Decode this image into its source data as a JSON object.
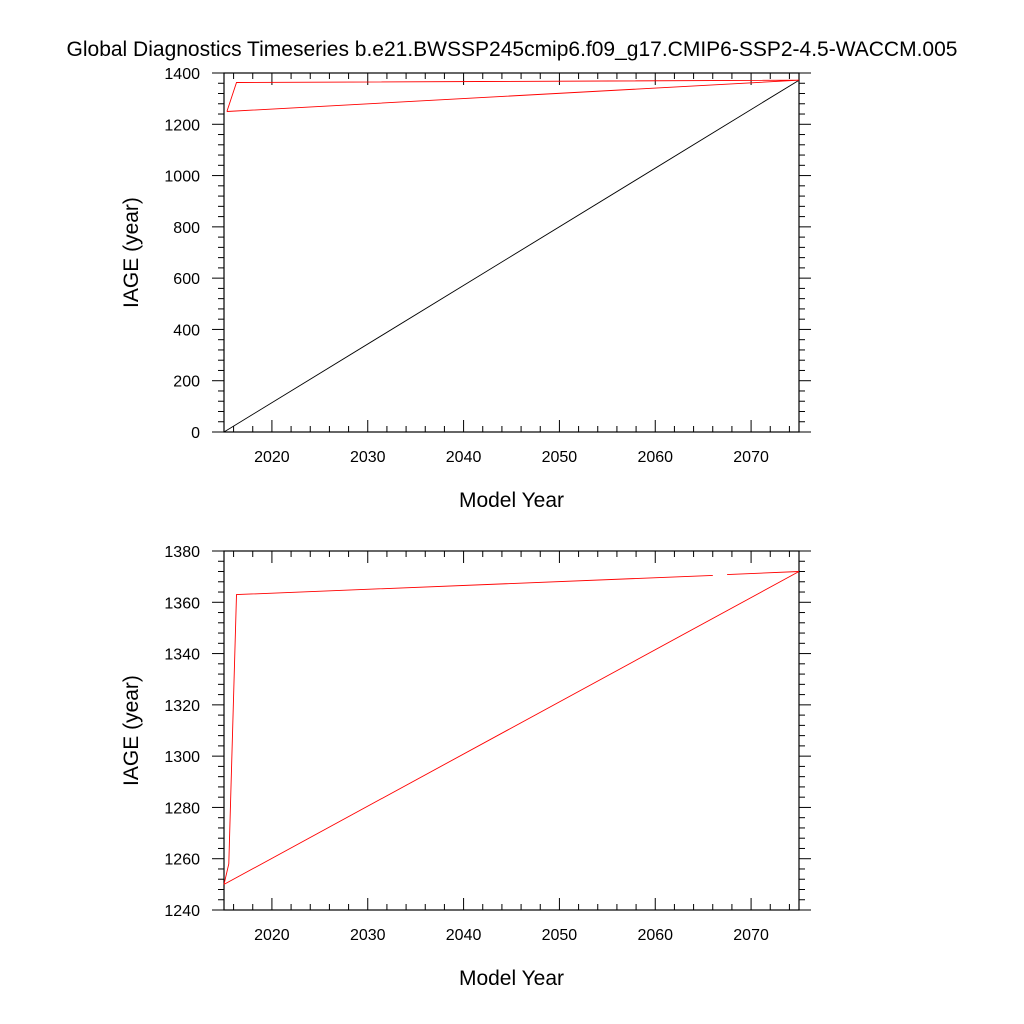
{
  "figure": {
    "title": "Global Diagnostics Timeseries b.e21.BWSSP245cmip6.f09_g17.CMIP6-SSP2-4.5-WACCM.005"
  },
  "chart_data": [
    {
      "type": "line",
      "xlabel": "Model Year",
      "ylabel": "IAGE (year)",
      "xlim": [
        2015,
        2075
      ],
      "ylim": [
        0,
        1400
      ],
      "xticks": [
        2020,
        2030,
        2040,
        2050,
        2060,
        2070
      ],
      "yticks": [
        0,
        200,
        400,
        600,
        800,
        1000,
        1200,
        1400
      ],
      "grid": false,
      "series": [
        {
          "color": "#000000",
          "x": [
            2015,
            2075
          ],
          "y": [
            0,
            1372
          ]
        },
        {
          "color": "#ff0000",
          "x": [
            2015.3,
            2016.3,
            2075,
            2015.3
          ],
          "y": [
            1250,
            1363,
            1372,
            1250
          ]
        }
      ]
    },
    {
      "type": "line",
      "xlabel": "Model Year",
      "ylabel": "IAGE (year)",
      "xlim": [
        2015,
        2075
      ],
      "ylim": [
        1240,
        1380
      ],
      "xticks": [
        2020,
        2030,
        2040,
        2050,
        2060,
        2070
      ],
      "yticks": [
        1240,
        1260,
        1280,
        1300,
        1320,
        1340,
        1360,
        1380
      ],
      "grid": false,
      "series": [
        {
          "color": "#ff0000",
          "x": [
            2015,
            2015.5,
            2016.3,
            2066
          ],
          "y": [
            1250,
            1258,
            1363,
            1370.5
          ]
        },
        {
          "color": "#ff0000",
          "x": [
            2067.5,
            2075
          ],
          "y": [
            1370.8,
            1372
          ]
        },
        {
          "color": "#ff0000",
          "x": [
            2015,
            2075
          ],
          "y": [
            1250,
            1372
          ]
        }
      ]
    }
  ]
}
